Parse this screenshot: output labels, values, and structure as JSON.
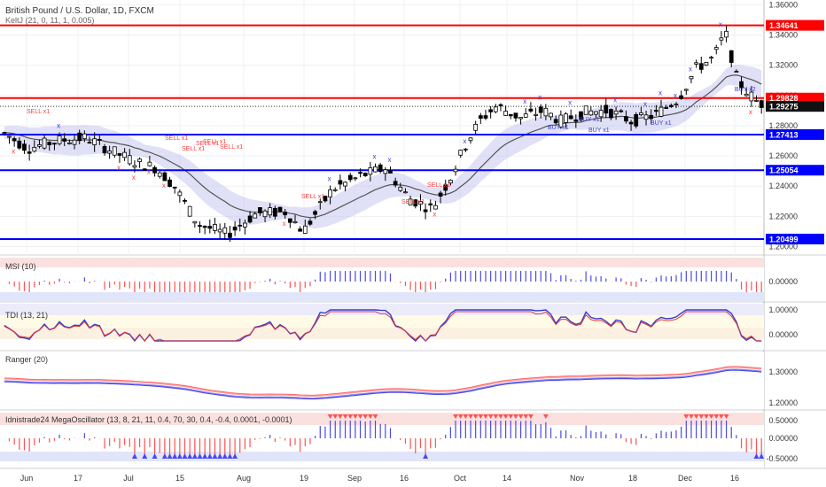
{
  "header": {
    "title": "British Pound / U.S. Dollar, 1D, FXCM",
    "indicator": "KeltJ (21, 0, 11, 1, 0.005)"
  },
  "colors": {
    "up": "#ffffff",
    "down": "#000000",
    "resistance": "#ff0000",
    "support": "#0000ff",
    "band_fill": "#c6c6f0",
    "sell_marker": "#ff3b3b",
    "buy_marker": "#3b3bd8",
    "red_hist": "#ff5252",
    "blue_hist": "#4a4ae8"
  },
  "chart_data": [
    {
      "type": "line",
      "pane": "price",
      "y_ticks": [
        "1.20000",
        "1.22000",
        "1.24000",
        "1.26000",
        "1.28000",
        "1.30000",
        "1.32000",
        "1.34000",
        "1.36000"
      ],
      "ylim": [
        1.195,
        1.362
      ],
      "x_tick_labels": [
        "Jun",
        "17",
        "Jul",
        "15",
        "Aug",
        "19",
        "Sep",
        "16",
        "Oct",
        "14",
        "Nov",
        "18",
        "Dec",
        "16"
      ],
      "levels": [
        {
          "label": "1.34641",
          "value": 1.34641,
          "color": "#ff0000"
        },
        {
          "label": "1.29828",
          "value": 1.29828,
          "color": "#ff0000"
        },
        {
          "label": "1.27413",
          "value": 1.27413,
          "color": "#0000ff"
        },
        {
          "label": "1.25054",
          "value": 1.25054,
          "color": "#0000ff"
        },
        {
          "label": "1.20499",
          "value": 1.20499,
          "color": "#0000ff"
        }
      ],
      "last_price": {
        "label": "1.29275",
        "value": 1.29275
      },
      "signals": [
        "SELL x1",
        "SELL x1",
        "SELL x1",
        "SELL x1",
        "SELL x1",
        "SELL x1",
        "SELL x1",
        "SELL x1",
        "SELL x1",
        "BUY x1",
        "BUY x1",
        "BUY x1",
        "BUY x1",
        "BUY x2",
        "BUY x1"
      ]
    },
    {
      "type": "bar",
      "pane": "MSI",
      "title": "MSI (10)",
      "y_ticks": [
        "0.00000"
      ]
    },
    {
      "type": "line",
      "pane": "TDI",
      "title": "TDI (13, 21)",
      "y_ticks": [
        "1.00000",
        "0.00000"
      ]
    },
    {
      "type": "line",
      "pane": "Ranger",
      "title": "Ranger (20)",
      "y_ticks": [
        "1.30000",
        "1.20000"
      ]
    },
    {
      "type": "bar",
      "pane": "MegaOscillator",
      "title": "Idnistrade24 MegaOscillator (13, 8, 21, 11, 0.4, 70, 30, 0.4, -0.4, 0.0001, -0.0001)",
      "y_ticks": [
        "0.50000",
        "0.00000",
        "-0.50000"
      ]
    }
  ]
}
